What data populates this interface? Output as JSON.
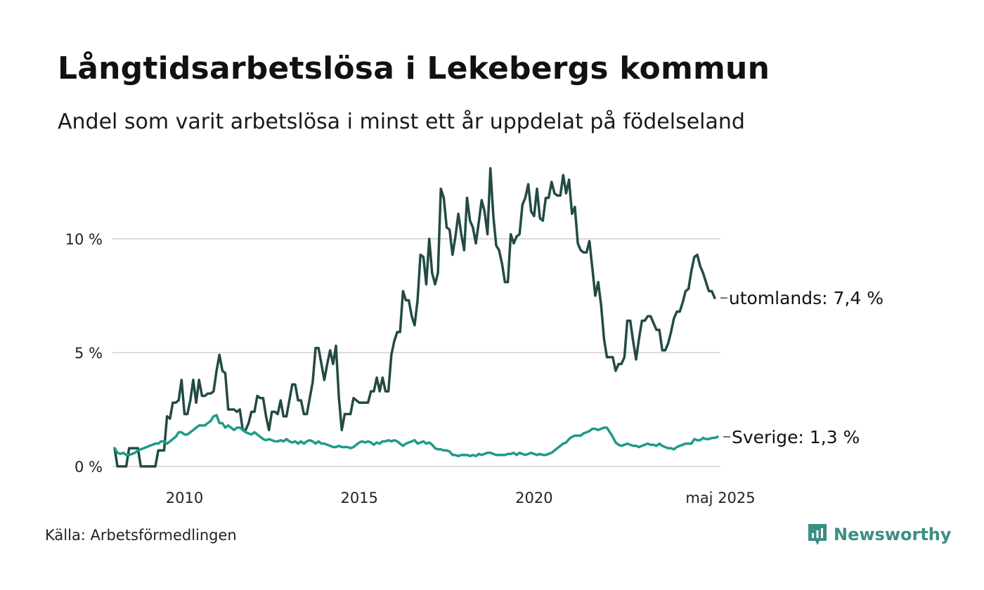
{
  "header": {
    "title": "Långtidsarbetslösa i Lekebergs kommun",
    "subtitle": "Andel som varit arbetslösa i minst ett år uppdelat på födelseland"
  },
  "footer": {
    "source": "Källa: Arbetsförmedlingen",
    "brand": "Newsworthy",
    "brand_icon": "newsworthy-logo-icon",
    "brand_color": "#3a8f86"
  },
  "chart_data": {
    "type": "line",
    "x_start": "2008-01",
    "x_step": "month",
    "x_end": "2025-05",
    "xticks": [
      {
        "label": "2010",
        "x": 2010.0
      },
      {
        "label": "2015",
        "x": 2015.0
      },
      {
        "label": "2020",
        "x": 2020.0
      },
      {
        "label": "maj 2025",
        "x": 2025.33
      }
    ],
    "yticks": [
      {
        "label": "0 %",
        "y": 0
      },
      {
        "label": "5 %",
        "y": 5
      },
      {
        "label": "10 %",
        "y": 10
      }
    ],
    "ylim": [
      0,
      13
    ],
    "grid": true,
    "legend": "end-of-line labels",
    "series": [
      {
        "name": "utomlands",
        "end_label": "utomlands: 7,4 %",
        "color": "#234a44",
        "values": [
          0.8,
          0.0,
          0.0,
          0.0,
          0.0,
          0.8,
          0.8,
          0.8,
          0.8,
          0.0,
          0.0,
          0.0,
          0.0,
          0.0,
          0.0,
          0.7,
          0.7,
          0.7,
          2.2,
          2.1,
          2.8,
          2.8,
          2.9,
          3.8,
          2.3,
          2.3,
          2.9,
          3.8,
          2.8,
          3.8,
          3.1,
          3.1,
          3.2,
          3.2,
          3.3,
          4.2,
          4.9,
          4.2,
          4.1,
          2.5,
          2.5,
          2.5,
          2.4,
          2.5,
          1.6,
          1.6,
          1.9,
          2.4,
          2.4,
          3.1,
          3.0,
          3.0,
          2.2,
          1.6,
          2.4,
          2.4,
          2.3,
          2.9,
          2.2,
          2.2,
          2.9,
          3.6,
          3.6,
          2.9,
          2.9,
          2.3,
          2.3,
          3.0,
          3.7,
          5.2,
          5.2,
          4.5,
          3.8,
          4.5,
          5.1,
          4.5,
          5.3,
          3.0,
          1.6,
          2.3,
          2.3,
          2.3,
          3.0,
          2.9,
          2.8,
          2.8,
          2.8,
          2.8,
          3.3,
          3.3,
          3.9,
          3.3,
          3.9,
          3.3,
          3.3,
          4.9,
          5.5,
          5.9,
          5.9,
          7.7,
          7.3,
          7.3,
          6.6,
          6.2,
          7.3,
          9.3,
          9.2,
          8.0,
          10.0,
          8.5,
          8.0,
          8.5,
          12.2,
          11.8,
          10.5,
          10.4,
          9.3,
          10.1,
          11.1,
          10.2,
          9.5,
          11.8,
          10.8,
          10.5,
          9.8,
          10.7,
          11.7,
          11.2,
          10.2,
          13.1,
          11.0,
          9.7,
          9.5,
          8.9,
          8.1,
          8.1,
          10.2,
          9.8,
          10.1,
          10.2,
          11.5,
          11.8,
          12.4,
          11.2,
          11.0,
          12.2,
          10.9,
          10.8,
          11.8,
          11.8,
          12.5,
          12.0,
          11.9,
          11.9,
          12.8,
          12.0,
          12.6,
          11.1,
          11.4,
          9.8,
          9.5,
          9.4,
          9.4,
          9.9,
          8.7,
          7.5,
          8.1,
          7.1,
          5.6,
          4.8,
          4.8,
          4.8,
          4.2,
          4.5,
          4.5,
          4.8,
          6.4,
          6.4,
          5.5,
          4.7,
          5.6,
          6.4,
          6.4,
          6.6,
          6.6,
          6.3,
          6.0,
          6.0,
          5.1,
          5.1,
          5.4,
          5.9,
          6.5,
          6.8,
          6.8,
          7.2,
          7.7,
          7.8,
          8.6,
          9.2,
          9.3,
          8.8,
          8.5,
          8.1,
          7.7,
          7.7,
          7.4
        ]
      },
      {
        "name": "Sverige",
        "end_label": "Sverige: 1,3 %",
        "color": "#1f9a88",
        "values": [
          0.8,
          0.6,
          0.55,
          0.6,
          0.5,
          0.5,
          0.55,
          0.6,
          0.7,
          0.75,
          0.8,
          0.85,
          0.9,
          0.95,
          1.0,
          1.0,
          1.1,
          1.1,
          1.0,
          1.1,
          1.2,
          1.3,
          1.5,
          1.5,
          1.4,
          1.4,
          1.5,
          1.6,
          1.7,
          1.8,
          1.8,
          1.8,
          1.9,
          2.0,
          2.2,
          2.25,
          1.9,
          1.9,
          1.7,
          1.8,
          1.7,
          1.6,
          1.7,
          1.7,
          1.6,
          1.5,
          1.45,
          1.4,
          1.5,
          1.4,
          1.3,
          1.2,
          1.15,
          1.2,
          1.15,
          1.1,
          1.1,
          1.15,
          1.1,
          1.2,
          1.1,
          1.05,
          1.1,
          1.0,
          1.1,
          1.0,
          1.1,
          1.15,
          1.1,
          1.0,
          1.1,
          1.0,
          1.0,
          0.95,
          0.9,
          0.85,
          0.85,
          0.9,
          0.85,
          0.85,
          0.85,
          0.8,
          0.85,
          0.95,
          1.05,
          1.1,
          1.05,
          1.1,
          1.05,
          0.95,
          1.05,
          1.0,
          1.1,
          1.1,
          1.15,
          1.1,
          1.15,
          1.1,
          1.0,
          0.9,
          1.0,
          1.05,
          1.1,
          1.15,
          1.0,
          1.05,
          1.1,
          1.0,
          1.05,
          0.95,
          0.8,
          0.75,
          0.75,
          0.7,
          0.7,
          0.65,
          0.5,
          0.5,
          0.45,
          0.5,
          0.5,
          0.5,
          0.45,
          0.5,
          0.45,
          0.55,
          0.5,
          0.55,
          0.6,
          0.6,
          0.55,
          0.5,
          0.5,
          0.5,
          0.5,
          0.55,
          0.55,
          0.6,
          0.5,
          0.6,
          0.55,
          0.5,
          0.55,
          0.6,
          0.55,
          0.5,
          0.55,
          0.5,
          0.5,
          0.55,
          0.6,
          0.7,
          0.8,
          0.9,
          1.0,
          1.05,
          1.2,
          1.3,
          1.35,
          1.35,
          1.35,
          1.45,
          1.5,
          1.55,
          1.65,
          1.65,
          1.6,
          1.65,
          1.7,
          1.7,
          1.5,
          1.3,
          1.05,
          0.95,
          0.9,
          0.95,
          1.0,
          0.95,
          0.9,
          0.9,
          0.85,
          0.9,
          0.95,
          1.0,
          0.95,
          0.95,
          0.9,
          1.0,
          0.9,
          0.85,
          0.8,
          0.8,
          0.75,
          0.85,
          0.9,
          0.95,
          1.0,
          1.0,
          1.0,
          1.2,
          1.15,
          1.15,
          1.25,
          1.2,
          1.2,
          1.25,
          1.25,
          1.3
        ]
      }
    ]
  }
}
